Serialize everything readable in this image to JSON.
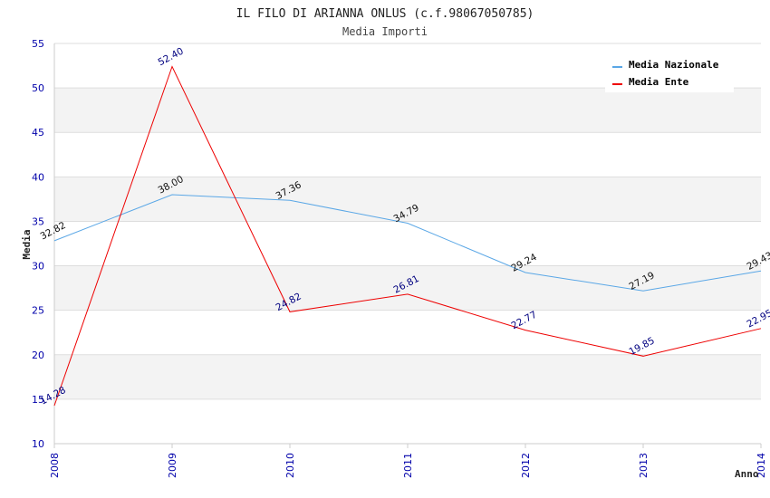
{
  "chart_data": {
    "type": "line",
    "title": "IL FILO DI ARIANNA ONLUS (c.f.98067050785)",
    "subtitle": "Media Importi",
    "xlabel": "Anno",
    "ylabel": "Media",
    "ylim": [
      10,
      55
    ],
    "yticks": [
      10,
      15,
      20,
      25,
      30,
      35,
      40,
      45,
      50,
      55
    ],
    "categories": [
      "2008",
      "2009",
      "2010",
      "2011",
      "2012",
      "2013",
      "2014"
    ],
    "legend_position": "top-right",
    "grid": "horizontal bands",
    "series": [
      {
        "name": "Media Nazionale",
        "color": "#5aa7e6",
        "label_color": "#111111",
        "values": [
          32.82,
          38.0,
          37.36,
          34.79,
          29.24,
          27.19,
          29.43
        ],
        "labels": [
          "32.82",
          "38.00",
          "37.36",
          "34.79",
          "29.24",
          "27.19",
          "29.43"
        ]
      },
      {
        "name": "Media Ente",
        "color": "#ee0000",
        "label_color": "#000080",
        "values": [
          14.28,
          52.4,
          24.82,
          26.81,
          22.77,
          19.85,
          22.95
        ],
        "labels": [
          "14.28",
          "52.40",
          "24.82",
          "26.81",
          "22.77",
          "19.85",
          "22.95"
        ]
      }
    ]
  }
}
